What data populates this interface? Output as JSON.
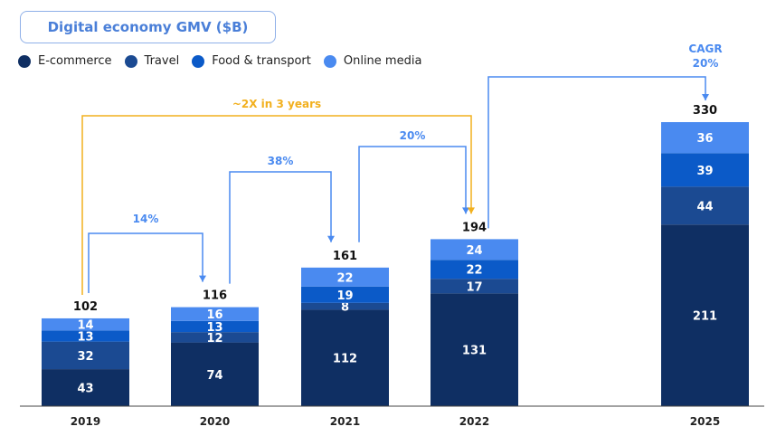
{
  "chart_data": {
    "type": "bar",
    "stacked": true,
    "title": "Digital economy GMV ($B)",
    "categories": [
      "2019",
      "2020",
      "2021",
      "2022",
      "2025"
    ],
    "series": [
      {
        "name": "E-commerce",
        "color": "#0f2f63",
        "values": [
          43,
          74,
          112,
          131,
          211
        ]
      },
      {
        "name": "Travel",
        "color": "#1b4a92",
        "values": [
          32,
          12,
          8,
          17,
          44
        ]
      },
      {
        "name": "Food & transport",
        "color": "#0b5ac8",
        "values": [
          13,
          13,
          19,
          22,
          39
        ]
      },
      {
        "name": "Online media",
        "color": "#4a8af0",
        "values": [
          14,
          16,
          22,
          24,
          36
        ]
      }
    ],
    "totals": [
      102,
      116,
      161,
      194,
      330
    ],
    "legend_position": "top-left",
    "annotations": [
      {
        "text": "14%",
        "from": "2019",
        "to": "2020",
        "color": "#4a8af0"
      },
      {
        "text": "38%",
        "from": "2020",
        "to": "2021",
        "color": "#4a8af0"
      },
      {
        "text": "20%",
        "from": "2021",
        "to": "2022",
        "color": "#4a8af0"
      },
      {
        "text": "~2X in 3 years",
        "from": "2019",
        "to": "2022",
        "color": "#f2b01e"
      },
      {
        "text": "CAGR",
        "text2": "20%",
        "from": "2022",
        "to": "2025",
        "color": "#4a8af0"
      }
    ]
  }
}
